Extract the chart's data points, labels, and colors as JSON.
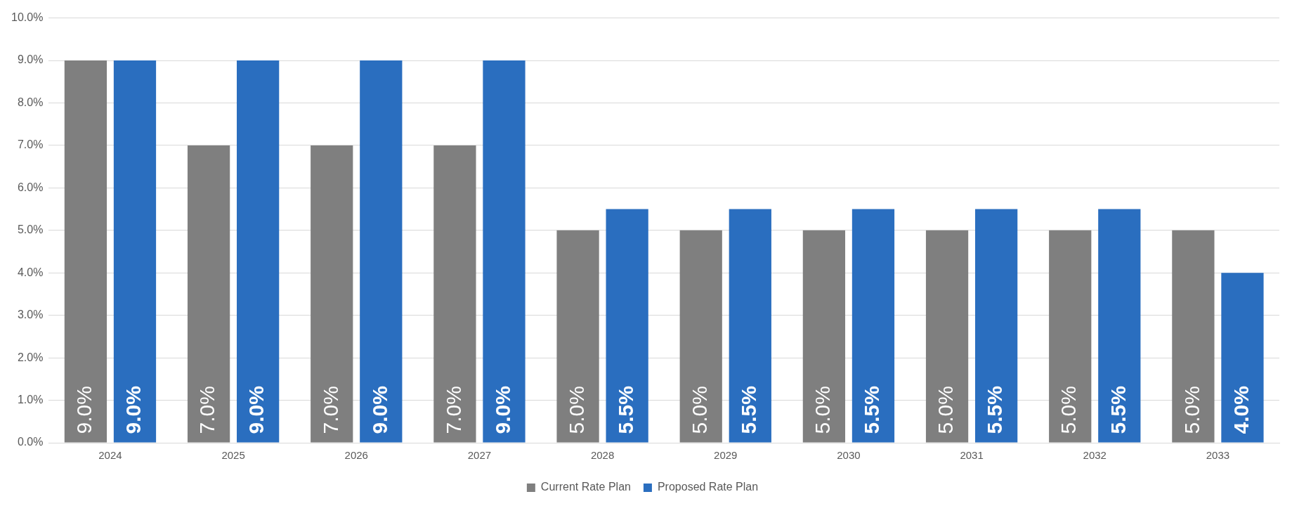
{
  "chart_data": {
    "type": "bar",
    "categories": [
      "2024",
      "2025",
      "2026",
      "2027",
      "2028",
      "2029",
      "2030",
      "2031",
      "2032",
      "2033"
    ],
    "series": [
      {
        "name": "Current Rate Plan",
        "color": "#7f7f7f",
        "values": [
          9,
          7,
          7,
          7,
          5,
          5,
          5,
          5,
          5,
          5
        ],
        "value_labels": [
          "9.0%",
          "7.0%",
          "7.0%",
          "7.0%",
          "5.0%",
          "5.0%",
          "5.0%",
          "5.0%",
          "5.0%",
          "5.0%"
        ]
      },
      {
        "name": "Proposed Rate Plan",
        "color": "#2a6ebf",
        "values": [
          9,
          9,
          9,
          9,
          5.5,
          5.5,
          5.5,
          5.5,
          5.5,
          4
        ],
        "value_labels": [
          "9.0%",
          "9.0%",
          "9.0%",
          "9.0%",
          "5.5%",
          "5.5%",
          "5.5%",
          "5.5%",
          "5.5%",
          "4.0%"
        ]
      }
    ],
    "ylim": [
      0,
      10
    ],
    "yticks": [
      {
        "value": 0,
        "label": "0.0%"
      },
      {
        "value": 1,
        "label": "1.0%"
      },
      {
        "value": 2,
        "label": "2.0%"
      },
      {
        "value": 3,
        "label": "3.0%"
      },
      {
        "value": 4,
        "label": "4.0%"
      },
      {
        "value": 5,
        "label": "5.0%"
      },
      {
        "value": 6,
        "label": "6.0%"
      },
      {
        "value": 7,
        "label": "7.0%"
      },
      {
        "value": 8,
        "label": "8.0%"
      },
      {
        "value": 9,
        "label": "9.0%"
      },
      {
        "value": 10,
        "label": "10.0%"
      }
    ],
    "grid": "y",
    "legend": "bottom"
  }
}
